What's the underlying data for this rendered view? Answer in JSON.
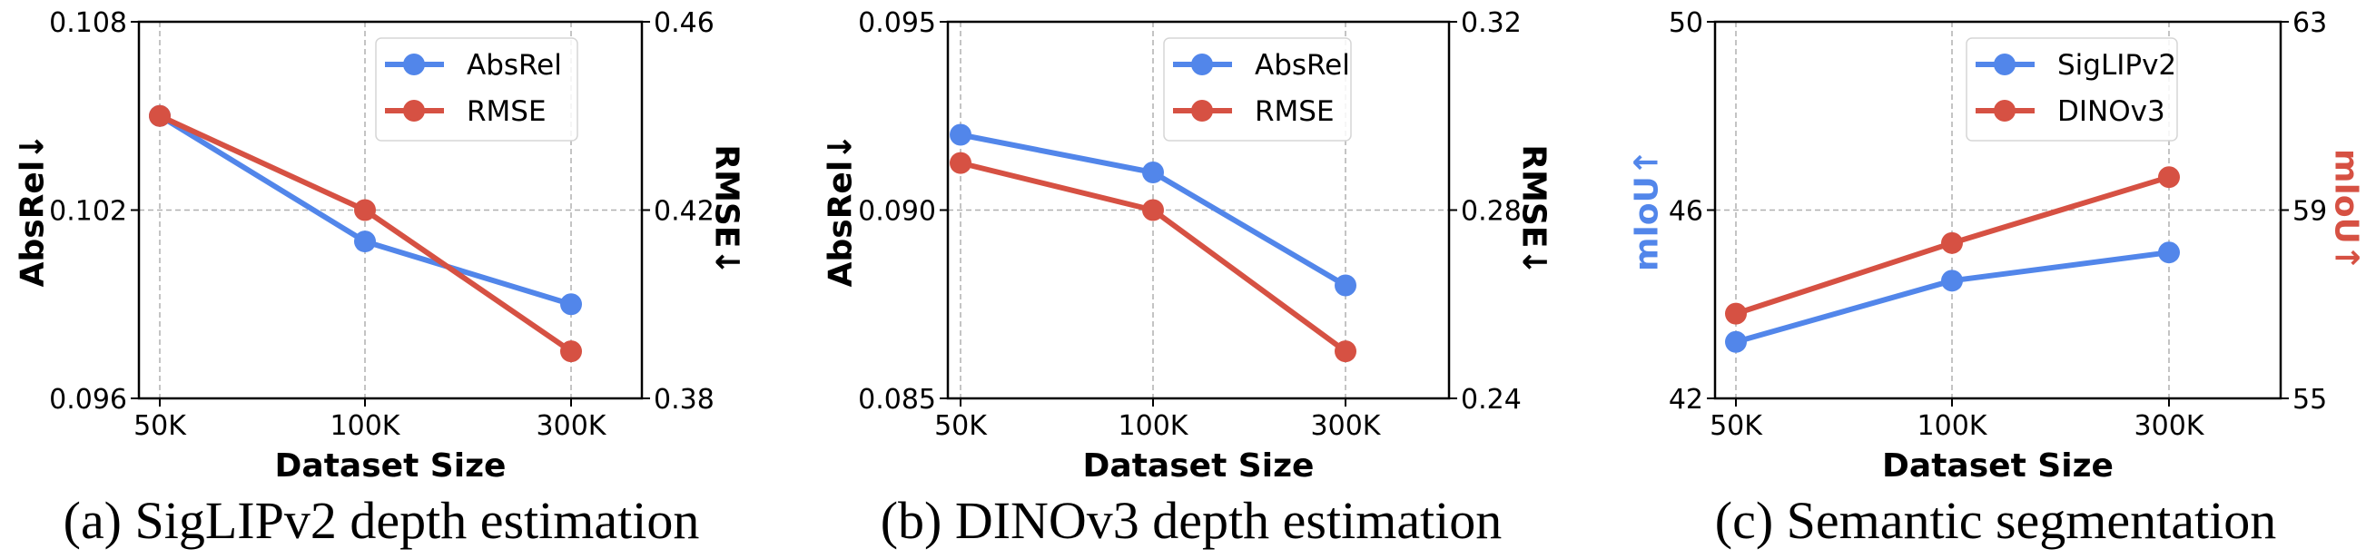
{
  "colors": {
    "blue": "#5286EA",
    "red": "#D65143",
    "grid": "#b0b0b0",
    "axis": "#000000"
  },
  "chart_data": [
    {
      "id": "a",
      "type": "line",
      "caption": "(a) SigLIPv2 depth estimation",
      "xlabel": "Dataset Size",
      "categories": [
        "50K",
        "100K",
        "300K"
      ],
      "grid": true,
      "legend_position": "top-right",
      "y_left": {
        "label": "AbsRel↓",
        "label_color": "#000000",
        "ylim": [
          0.096,
          0.108
        ],
        "ticks": [
          0.096,
          0.102,
          0.108
        ],
        "tick_labels": [
          "0.096",
          "0.102",
          "0.108"
        ]
      },
      "y_right": {
        "label": "RMSE↓",
        "label_color": "#000000",
        "ylim": [
          0.38,
          0.46
        ],
        "ticks": [
          0.38,
          0.42,
          0.46
        ],
        "tick_labels": [
          "0.38",
          "0.42",
          "0.46"
        ]
      },
      "series": [
        {
          "name": "AbsRel",
          "axis": "left",
          "color": "#5286EA",
          "values": [
            0.105,
            0.101,
            0.099
          ]
        },
        {
          "name": "RMSE",
          "axis": "right",
          "color": "#D65143",
          "values": [
            0.44,
            0.42,
            0.39
          ]
        }
      ]
    },
    {
      "id": "b",
      "type": "line",
      "caption": "(b) DINOv3 depth estimation",
      "xlabel": "Dataset Size",
      "categories": [
        "50K",
        "100K",
        "300K"
      ],
      "grid": true,
      "legend_position": "top-right",
      "y_left": {
        "label": "AbsRel↓",
        "label_color": "#000000",
        "ylim": [
          0.085,
          0.095
        ],
        "ticks": [
          0.085,
          0.09,
          0.095
        ],
        "tick_labels": [
          "0.085",
          "0.090",
          "0.095"
        ]
      },
      "y_right": {
        "label": "RMSE↓",
        "label_color": "#000000",
        "ylim": [
          0.24,
          0.32
        ],
        "ticks": [
          0.24,
          0.28,
          0.32
        ],
        "tick_labels": [
          "0.24",
          "0.28",
          "0.32"
        ]
      },
      "series": [
        {
          "name": "AbsRel",
          "axis": "left",
          "color": "#5286EA",
          "values": [
            0.092,
            0.091,
            0.088
          ]
        },
        {
          "name": "RMSE",
          "axis": "right",
          "color": "#D65143",
          "values": [
            0.29,
            0.28,
            0.25
          ]
        }
      ]
    },
    {
      "id": "c",
      "type": "line",
      "caption": "(c) Semantic segmentation",
      "xlabel": "Dataset Size",
      "categories": [
        "50K",
        "100K",
        "300K"
      ],
      "grid": true,
      "legend_position": "top-right",
      "y_left": {
        "label": "mIoU↑",
        "label_color": "#5286EA",
        "ylim": [
          42,
          50
        ],
        "ticks": [
          42,
          46,
          50
        ],
        "tick_labels": [
          "42",
          "46",
          "50"
        ]
      },
      "y_right": {
        "label": "mIoU↑",
        "label_color": "#D65143",
        "ylim": [
          55,
          63
        ],
        "ticks": [
          55,
          59,
          63
        ],
        "tick_labels": [
          "55",
          "59",
          "63"
        ]
      },
      "series": [
        {
          "name": "SigLIPv2",
          "axis": "left",
          "color": "#5286EA",
          "values": [
            43.2,
            44.5,
            45.1
          ]
        },
        {
          "name": "DINOv3",
          "axis": "right",
          "color": "#D65143",
          "values": [
            56.8,
            58.3,
            59.7
          ]
        }
      ]
    }
  ]
}
